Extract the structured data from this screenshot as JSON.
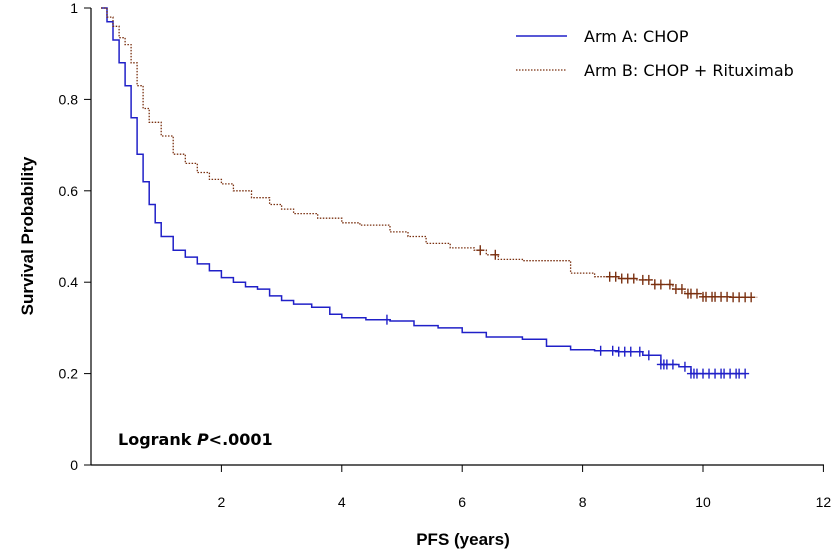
{
  "chart_data": {
    "type": "line",
    "title": "",
    "xlabel": "PFS (years)",
    "ylabel": "Survival Probability",
    "xlim": [
      0,
      12
    ],
    "ylim": [
      0,
      1
    ],
    "x_ticks": [
      2,
      4,
      6,
      8,
      10,
      12
    ],
    "y_ticks": [
      0,
      0.2,
      0.4,
      0.6,
      0.8,
      1
    ],
    "y_tick_labels": [
      "0",
      "0.2",
      "0.4",
      "0.6",
      "0.8",
      "1"
    ],
    "annotation": {
      "prefix": "Logrank ",
      "italic": "P",
      "suffix": "<.0001"
    },
    "legend_position": "top-right",
    "series": [
      {
        "name": "Arm A: CHOP",
        "color": "#2020c8",
        "style": "solid",
        "points": [
          [
            0.0,
            1.0
          ],
          [
            0.1,
            0.97
          ],
          [
            0.2,
            0.93
          ],
          [
            0.3,
            0.88
          ],
          [
            0.4,
            0.83
          ],
          [
            0.5,
            0.76
          ],
          [
            0.6,
            0.68
          ],
          [
            0.7,
            0.62
          ],
          [
            0.8,
            0.57
          ],
          [
            0.9,
            0.53
          ],
          [
            1.0,
            0.5
          ],
          [
            1.2,
            0.47
          ],
          [
            1.4,
            0.455
          ],
          [
            1.6,
            0.44
          ],
          [
            1.8,
            0.425
          ],
          [
            2.0,
            0.41
          ],
          [
            2.2,
            0.4
          ],
          [
            2.4,
            0.39
          ],
          [
            2.6,
            0.385
          ],
          [
            2.8,
            0.37
          ],
          [
            3.0,
            0.36
          ],
          [
            3.2,
            0.352
          ],
          [
            3.5,
            0.345
          ],
          [
            3.8,
            0.33
          ],
          [
            4.0,
            0.322
          ],
          [
            4.4,
            0.318
          ],
          [
            4.8,
            0.315
          ],
          [
            5.2,
            0.305
          ],
          [
            5.6,
            0.3
          ],
          [
            6.0,
            0.29
          ],
          [
            6.4,
            0.28
          ],
          [
            7.0,
            0.275
          ],
          [
            7.4,
            0.26
          ],
          [
            7.8,
            0.252
          ],
          [
            8.2,
            0.25
          ],
          [
            8.6,
            0.248
          ],
          [
            9.0,
            0.24
          ],
          [
            9.3,
            0.22
          ],
          [
            9.6,
            0.215
          ],
          [
            9.8,
            0.2
          ],
          [
            10.2,
            0.2
          ],
          [
            10.7,
            0.2
          ]
        ],
        "censor_x": [
          4.75,
          8.3,
          8.5,
          8.6,
          8.7,
          8.8,
          8.95,
          9.1,
          9.3,
          9.35,
          9.4,
          9.5,
          9.7,
          9.8,
          9.85,
          9.9,
          10.0,
          10.1,
          10.2,
          10.3,
          10.35,
          10.45,
          10.55,
          10.6,
          10.7
        ]
      },
      {
        "name": "Arm B: CHOP + Rituximab",
        "color": "#7a3010",
        "style": "dotted",
        "points": [
          [
            0.0,
            1.0
          ],
          [
            0.1,
            0.98
          ],
          [
            0.2,
            0.96
          ],
          [
            0.3,
            0.935
          ],
          [
            0.4,
            0.92
          ],
          [
            0.5,
            0.88
          ],
          [
            0.6,
            0.83
          ],
          [
            0.7,
            0.78
          ],
          [
            0.8,
            0.75
          ],
          [
            1.0,
            0.72
          ],
          [
            1.2,
            0.68
          ],
          [
            1.4,
            0.66
          ],
          [
            1.6,
            0.64
          ],
          [
            1.8,
            0.625
          ],
          [
            2.0,
            0.615
          ],
          [
            2.2,
            0.6
          ],
          [
            2.5,
            0.585
          ],
          [
            2.8,
            0.57
          ],
          [
            3.0,
            0.56
          ],
          [
            3.2,
            0.55
          ],
          [
            3.6,
            0.54
          ],
          [
            4.0,
            0.53
          ],
          [
            4.3,
            0.525
          ],
          [
            4.8,
            0.51
          ],
          [
            5.1,
            0.5
          ],
          [
            5.4,
            0.485
          ],
          [
            5.8,
            0.475
          ],
          [
            6.2,
            0.47
          ],
          [
            6.4,
            0.46
          ],
          [
            6.6,
            0.45
          ],
          [
            7.0,
            0.447
          ],
          [
            7.5,
            0.447
          ],
          [
            7.8,
            0.42
          ],
          [
            8.2,
            0.412
          ],
          [
            8.6,
            0.408
          ],
          [
            8.9,
            0.405
          ],
          [
            9.2,
            0.395
          ],
          [
            9.5,
            0.385
          ],
          [
            9.7,
            0.375
          ],
          [
            10.0,
            0.368
          ],
          [
            10.5,
            0.367
          ],
          [
            10.9,
            0.367
          ]
        ],
        "censor_x": [
          6.3,
          6.55,
          8.45,
          8.55,
          8.65,
          8.75,
          8.85,
          9.0,
          9.1,
          9.2,
          9.3,
          9.45,
          9.55,
          9.65,
          9.75,
          9.8,
          9.9,
          10.0,
          10.05,
          10.15,
          10.2,
          10.3,
          10.4,
          10.5,
          10.6,
          10.7,
          10.8
        ]
      }
    ]
  }
}
